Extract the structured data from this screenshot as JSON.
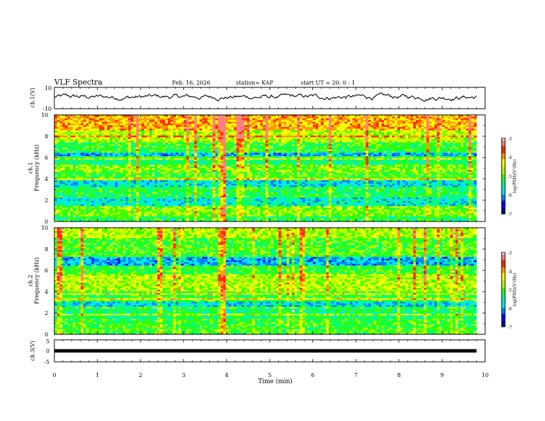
{
  "header": {
    "title": "VLF Spectra",
    "date": "Feb. 16, 2026",
    "station": "station= KAP",
    "start": "start UT =  20: 0  : 1"
  },
  "colors": {
    "colormap": [
      "#00007f",
      "#0000ff",
      "#007fff",
      "#00e5ff",
      "#00ff7f",
      "#33ff00",
      "#b2ff00",
      "#ffff00",
      "#ff9900",
      "#ff2a00",
      "#ff8080",
      "#ffffff"
    ]
  },
  "chart_data": [
    {
      "id": "ch1-waveform",
      "type": "line",
      "ylabel": "ch.1(V)",
      "xlim": [
        0,
        10
      ],
      "ylim": [
        -10,
        10
      ],
      "y_ticks": [
        "10",
        "-10"
      ],
      "x_end": 9.8,
      "description_values": {
        "baseline": 1,
        "amplitude": 4
      }
    },
    {
      "id": "ch1-spectrogram",
      "type": "heatmap",
      "panel_label": "ch.1",
      "ylabel": "Frequency (kHz)",
      "xlim": [
        0,
        10
      ],
      "ylim": [
        0,
        10
      ],
      "y_ticks": [
        "0",
        "2",
        "4",
        "6",
        "8",
        "10"
      ],
      "colorbar": {
        "label": "log(PSD)(V²/Hz)",
        "range": [
          -7,
          -3
        ],
        "ticks": [
          "-3",
          "-4",
          "-5",
          "-6",
          "-7"
        ]
      },
      "bands": [
        {
          "f": [
            0.0,
            0.5
          ],
          "level": -5.2
        },
        {
          "f": [
            0.5,
            1.5
          ],
          "level": -4.8
        },
        {
          "f": [
            1.5,
            2.2
          ],
          "level": -5.6
        },
        {
          "f": [
            2.2,
            3.3
          ],
          "level": -5.2
        },
        {
          "f": [
            3.3,
            3.8
          ],
          "level": -5.7
        },
        {
          "f": [
            3.8,
            4.6
          ],
          "level": -5.0
        },
        {
          "f": [
            4.6,
            5.3
          ],
          "level": -4.8
        },
        {
          "f": [
            5.3,
            5.9
          ],
          "level": -5.3
        },
        {
          "f": [
            5.9,
            6.5
          ],
          "level": -5.9
        },
        {
          "f": [
            6.5,
            7.4
          ],
          "level": -5.1
        },
        {
          "f": [
            7.4,
            8.5
          ],
          "level": -4.6
        },
        {
          "f": [
            8.5,
            10.0
          ],
          "level": -4.0
        }
      ],
      "event_time": 3.88
    },
    {
      "id": "ch2-spectrogram",
      "type": "heatmap",
      "panel_label": "ch.2",
      "ylabel": "Frequency (kHz)",
      "xlim": [
        0,
        10
      ],
      "ylim": [
        0,
        10
      ],
      "y_ticks": [
        "0",
        "2",
        "4",
        "6",
        "8",
        "10"
      ],
      "colorbar": {
        "label": "log(PSD)(V²/Hz)",
        "range": [
          -7,
          -3
        ],
        "ticks": [
          "-3",
          "-4",
          "-5",
          "-6",
          "-7"
        ]
      },
      "bands": [
        {
          "f": [
            0.0,
            0.5
          ],
          "level": -5.0
        },
        {
          "f": [
            0.5,
            1.5
          ],
          "level": -5.1
        },
        {
          "f": [
            1.5,
            2.4
          ],
          "level": -5.3
        },
        {
          "f": [
            2.4,
            3.1
          ],
          "level": -5.8
        },
        {
          "f": [
            3.1,
            4.0
          ],
          "level": -5.1
        },
        {
          "f": [
            4.0,
            5.6
          ],
          "level": -4.6
        },
        {
          "f": [
            5.6,
            6.4
          ],
          "level": -5.1
        },
        {
          "f": [
            6.4,
            7.3
          ],
          "level": -5.9
        },
        {
          "f": [
            7.3,
            9.0
          ],
          "level": -5.0
        },
        {
          "f": [
            9.0,
            10.0
          ],
          "level": -4.6
        }
      ],
      "event_time": 3.88
    },
    {
      "id": "ch3-waveform",
      "type": "line",
      "ylabel": "ch.3(V)",
      "xlim": [
        0,
        10
      ],
      "ylim": [
        -5,
        5
      ],
      "y_ticks": [
        "5",
        "0",
        "-5"
      ],
      "level": 0,
      "x_end": 9.8
    }
  ],
  "x_axis": {
    "label": "Time (min)",
    "ticks": [
      "0",
      "1",
      "2",
      "3",
      "4",
      "5",
      "6",
      "7",
      "8",
      "9",
      "10"
    ],
    "range": [
      0,
      10
    ]
  }
}
